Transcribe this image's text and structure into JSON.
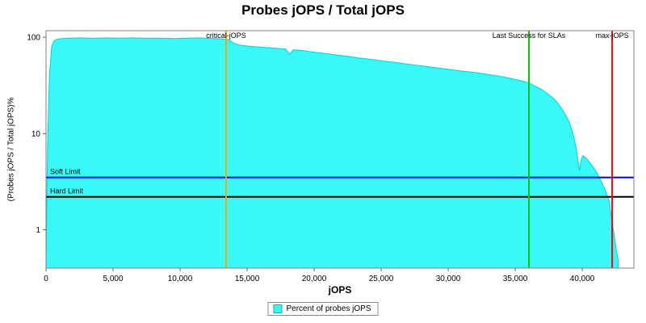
{
  "chart_data": {
    "type": "area",
    "title": "Probes jOPS / Total jOPS",
    "xlabel": "jOPS",
    "ylabel": "(Probes jOPS / Total jOPS)%",
    "y_scale": "log",
    "grid": false,
    "xlim": [
      0,
      43850
    ],
    "ylim": [
      0.4,
      117
    ],
    "x_ticks": [
      0,
      5000,
      10000,
      15000,
      20000,
      25000,
      30000,
      35000,
      40000
    ],
    "x_tick_labels": [
      "0",
      "5,000",
      "10,000",
      "15,000",
      "20,000",
      "25,000",
      "30,000",
      "35,000",
      "40,000"
    ],
    "y_ticks": [
      1,
      10,
      100
    ],
    "y_tick_labels": [
      "1",
      "10",
      "100"
    ],
    "series": [
      {
        "name": "Percent of probes jOPS",
        "color": "#38F8F8",
        "stroke": "#00D5D5",
        "points": [
          [
            0,
            0.5
          ],
          [
            120,
            8
          ],
          [
            250,
            40
          ],
          [
            420,
            80
          ],
          [
            600,
            92
          ],
          [
            900,
            96
          ],
          [
            1500,
            97.5
          ],
          [
            2500,
            98.5
          ],
          [
            3500,
            97.5
          ],
          [
            4500,
            98.5
          ],
          [
            5500,
            98
          ],
          [
            6500,
            98.5
          ],
          [
            7500,
            97.5
          ],
          [
            8500,
            98
          ],
          [
            9500,
            97
          ],
          [
            10500,
            98
          ],
          [
            11500,
            98.5
          ],
          [
            12500,
            97
          ],
          [
            13000,
            96.5
          ],
          [
            13430,
            95.5
          ],
          [
            13700,
            93
          ],
          [
            14000,
            87
          ],
          [
            14400,
            83
          ],
          [
            15000,
            81
          ],
          [
            15800,
            79.5
          ],
          [
            16600,
            78
          ],
          [
            17400,
            76.5
          ],
          [
            17900,
            75.5
          ],
          [
            18150,
            66.5
          ],
          [
            18450,
            74
          ],
          [
            19200,
            72.5
          ],
          [
            20000,
            70
          ],
          [
            20800,
            68
          ],
          [
            21600,
            65.5
          ],
          [
            22500,
            63.5
          ],
          [
            23300,
            61
          ],
          [
            24200,
            59
          ],
          [
            25000,
            57
          ],
          [
            26000,
            55
          ],
          [
            27000,
            52.5
          ],
          [
            28000,
            50.5
          ],
          [
            29000,
            48.5
          ],
          [
            30000,
            46.5
          ],
          [
            31000,
            44.5
          ],
          [
            32000,
            43
          ],
          [
            33000,
            41
          ],
          [
            34000,
            39
          ],
          [
            35000,
            36.5
          ],
          [
            35600,
            35
          ],
          [
            36020,
            33.5
          ],
          [
            36500,
            31
          ],
          [
            37000,
            28.5
          ],
          [
            37400,
            26
          ],
          [
            37800,
            23.5
          ],
          [
            38200,
            20.5
          ],
          [
            38600,
            17
          ],
          [
            39000,
            13.5
          ],
          [
            39300,
            10
          ],
          [
            39550,
            7
          ],
          [
            39700,
            5
          ],
          [
            39800,
            4.1
          ],
          [
            39900,
            5.2
          ],
          [
            40050,
            5.9
          ],
          [
            40250,
            5.6
          ],
          [
            40500,
            5.1
          ],
          [
            40800,
            4.5
          ],
          [
            41100,
            3.9
          ],
          [
            41400,
            3.2
          ],
          [
            41700,
            2.6
          ],
          [
            42000,
            2.0
          ],
          [
            42230,
            1.2
          ],
          [
            42400,
            0.85
          ],
          [
            42550,
            0.6
          ],
          [
            42680,
            0.48
          ]
        ]
      }
    ],
    "vlines": [
      {
        "label": "critical-jOPS",
        "x": 13430,
        "color": "#FFA500"
      },
      {
        "label": "Last Success for SLAs",
        "x": 36020,
        "color": "#00C800"
      },
      {
        "label": "max-jOPS",
        "x": 42230,
        "color": "#FF0000"
      }
    ],
    "hlines": [
      {
        "label": "Soft Limit",
        "y": 3.5,
        "color": "#0000EE"
      },
      {
        "label": "Hard Limit",
        "y": 2.2,
        "color": "#000000"
      }
    ],
    "legend": {
      "position": "bottom",
      "entries": [
        {
          "label": "Percent of probes jOPS",
          "color": "#38F8F8"
        }
      ]
    },
    "colors": {
      "plot_border": "#808080",
      "tick": "#666666",
      "background": "#FFFFFF",
      "text": "#000000"
    }
  }
}
